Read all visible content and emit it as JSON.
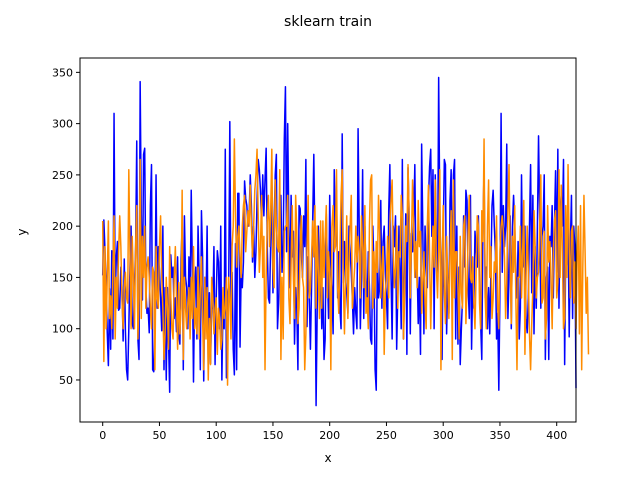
{
  "chart_data": {
    "type": "line",
    "title": "sklearn train",
    "xlabel": "x",
    "ylabel": "y",
    "xlim": [
      -20,
      417
    ],
    "ylim": [
      9,
      364
    ],
    "xticks": [
      0,
      50,
      100,
      150,
      200,
      250,
      300,
      350,
      400
    ],
    "yticks": [
      50,
      100,
      150,
      200,
      250,
      300,
      350
    ],
    "grid": false,
    "legend": "none",
    "series": [
      {
        "color": "#0000ff",
        "x_start": 0,
        "x_step": 1,
        "values": [
          152,
          206,
          177,
          140,
          97,
          64,
          139,
          80,
          176,
          90,
          310,
          128,
          170,
          185,
          118,
          120,
          160,
          140,
          88,
          168,
          98,
          60,
          50,
          100,
          160,
          200,
          105,
          100,
          140,
          180,
          283,
          90,
          70,
          341,
          210,
          128,
          270,
          276,
          140,
          115,
          120,
          96,
          220,
          260,
          60,
          58,
          100,
          250,
          120,
          180,
          157,
          130,
          98,
          200,
          60,
          140,
          50,
          140,
          90,
          38,
          172,
          150,
          160,
          110,
          130,
          97,
          170,
          95,
          85,
          168,
          200,
          60,
          210,
          150,
          140,
          100,
          170,
          120,
          235,
          160,
          48,
          140,
          160,
          90,
          200,
          150,
          60,
          215,
          170,
          49,
          150,
          120,
          200,
          65,
          135,
          66,
          120,
          120,
          180,
          65,
          130,
          176,
          165,
          100,
          200,
          50,
          125,
          100,
          275,
          52,
          135,
          140,
          302,
          127,
          155,
          80,
          55,
          183,
          60,
          232,
          232,
          82,
          155,
          140,
          165,
          244,
          227,
          220,
          200,
          210,
          250,
          220,
          165,
          200,
          150,
          175,
          225,
          265,
          255,
          235,
          200,
          250,
          210,
          245,
          276,
          180,
          130,
          125,
          185,
          240,
          135,
          200,
          250,
          270,
          100,
          125,
          175,
          230,
          155,
          180,
          285,
          336,
          175,
          300,
          200,
          140,
          230,
          170,
          195,
          85,
          140,
          120,
          60,
          220,
          217,
          175,
          150,
          210,
          180,
          265,
          102,
          170,
          130,
          80,
          140,
          205,
          270,
          180,
          25,
          120,
          200,
          150,
          175,
          100,
          140,
          70,
          90,
          212,
          155,
          110,
          230,
          160,
          140,
          95,
          255,
          180,
          235,
          130,
          175,
          120,
          100,
          290,
          145,
          185,
          145,
          135,
          115,
          200,
          175,
          155,
          128,
          95,
          140,
          115,
          100,
          295,
          200,
          100,
          150,
          255,
          110,
          200,
          150,
          120,
          175,
          140,
          90,
          85,
          200,
          160,
          60,
          40,
          175,
          130,
          140,
          225,
          120,
          185,
          200,
          155,
          130,
          100,
          215,
          260,
          155,
          90,
          200,
          180,
          210,
          80,
          135,
          200,
          160,
          100,
          265,
          90,
          150,
          212,
          75,
          257,
          210,
          95,
          193,
          175,
          205,
          260,
          150,
          162,
          105,
          150,
          75,
          280,
          200,
          95,
          200,
          160,
          140,
          225,
          258,
          275,
          190,
          255,
          100,
          250,
          185,
          140,
          345,
          215,
          155,
          70,
          190,
          265,
          260,
          95,
          150,
          115,
          225,
          255,
          125,
          250,
          265,
          90,
          200,
          85,
          160,
          65,
          100,
          130,
          210,
          160,
          235,
          225,
          140,
          110,
          230,
          80,
          150,
          120,
          195,
          175,
          160,
          210,
          140,
          105,
          70,
          200,
          255,
          130,
          160,
          100,
          140,
          95,
          155,
          220,
          235,
          200,
          175,
          90,
          115,
          40,
          140,
          310,
          155,
          220,
          180,
          200,
          280,
          110,
          150,
          210,
          100,
          200,
          230,
          200,
          150,
          130,
          185,
          90,
          120,
          250,
          160,
          175,
          200,
          110,
          96,
          130,
          200,
          260,
          135,
          230,
          95,
          180,
          120,
          200,
          288,
          210,
          120,
          190,
          200,
          250,
          70,
          150,
          160,
          70,
          190,
          180,
          220,
          130,
          200,
          254,
          155,
          275,
          120,
          215,
          230,
          200,
          265,
          65,
          185,
          162,
          210,
          92,
          180,
          230,
          110,
          200,
          180,
          42
        ]
      },
      {
        "color": "#ff8c00",
        "x_start": 0,
        "x_step": 1,
        "values": [
          205,
          68,
          180,
          100,
          150,
          205,
          110,
          132,
          100,
          160,
          210,
          90,
          150,
          120,
          175,
          210,
          180,
          128,
          100,
          140,
          155,
          130,
          125,
          255,
          175,
          100,
          190,
          150,
          100,
          180,
          220,
          90,
          130,
          265,
          110,
          190,
          150,
          200,
          120,
          160,
          170,
          150,
          120,
          100,
          160,
          155,
          60,
          180,
          130,
          120,
          180,
          210,
          150,
          120,
          70,
          95,
          150,
          120,
          80,
          180,
          130,
          100,
          90,
          150,
          180,
          130,
          80,
          145,
          95,
          120,
          235,
          70,
          150,
          120,
          100,
          125,
          140,
          90,
          150,
          110,
          180,
          100,
          120,
          95,
          160,
          90,
          140,
          170,
          110,
          60,
          150,
          90,
          140,
          50,
          110,
          65,
          150,
          130,
          95,
          120,
          130,
          75,
          120,
          110,
          80,
          90,
          140,
          110,
          120,
          150,
          45,
          150,
          130,
          90,
          180,
          200,
          285,
          210,
          160,
          190,
          200,
          170,
          150,
          200,
          220,
          230,
          175,
          195,
          215,
          200,
          240,
          200,
          170,
          200,
          235,
          250,
          275,
          210,
          155,
          180,
          230,
          150,
          190,
          60,
          150,
          205,
          230,
          180,
          215,
          275,
          160,
          140,
          245,
          200,
          180,
          175,
          255,
          70,
          150,
          90,
          195,
          200,
          200,
          230,
          130,
          105,
          165,
          220,
          150,
          110,
          230,
          195,
          105,
          120,
          180,
          210,
          150,
          140,
          60,
          95,
          175,
          230,
          130,
          140,
          170,
          205,
          170,
          220,
          120,
          200,
          155,
          110,
          205,
          120,
          205,
          150,
          190,
          220,
          130,
          175,
          155,
          60,
          200,
          220,
          175,
          180,
          255,
          140,
          115,
          175,
          230,
          255,
          145,
          95,
          155,
          210,
          110,
          165,
          200,
          230,
          120,
          140,
          160,
          200,
          165,
          190,
          175,
          130,
          210,
          180,
          140,
          220,
          115,
          130,
          100,
          200,
          245,
          250,
          120,
          175,
          130,
          185,
          155,
          230,
          195,
          130,
          160,
          180,
          75,
          135,
          150,
          190,
          130,
          200,
          225,
          245,
          175,
          140,
          160,
          200,
          120,
          175,
          170,
          230,
          210,
          90,
          130,
          200,
          185,
          260,
          210,
          130,
          185,
          245,
          200,
          150,
          185,
          140,
          225,
          180,
          195,
          115,
          145,
          175,
          125,
          100,
          200,
          240,
          170,
          100,
          155,
          200,
          160,
          245,
          160,
          130,
          175,
          255,
          60,
          165,
          220,
          135,
          105,
          190,
          150,
          110,
          175,
          215,
          70,
          245,
          130,
          175,
          175,
          140,
          90,
          190,
          135,
          120,
          200,
          210,
          105,
          140,
          195,
          230,
          150,
          145,
          170,
          125,
          100,
          155,
          210,
          200,
          125,
          100,
          215,
          185,
          285,
          130,
          100,
          200,
          245,
          150,
          180,
          110,
          130,
          165,
          155,
          210,
          120,
          100,
          175,
          200,
          210,
          195,
          170,
          110,
          145,
          215,
          260,
          170,
          105,
          190,
          155,
          220,
          130,
          60,
          150,
          150,
          200,
          130,
          175,
          225,
          75,
          150,
          200,
          155,
          95,
          60,
          105,
          140,
          215,
          180,
          130,
          150,
          155,
          200,
          250,
          125,
          130,
          195,
          90,
          110,
          220,
          165,
          185,
          150,
          100,
          175,
          205,
          215,
          130,
          145,
          255,
          150,
          240,
          175,
          100,
          110,
          220,
          150,
          260,
          180,
          130,
          195,
          200,
          125,
          165,
          100,
          170,
          200,
          95,
          220,
          60,
          160,
          230,
          175,
          115,
          150,
          75
        ]
      }
    ]
  }
}
